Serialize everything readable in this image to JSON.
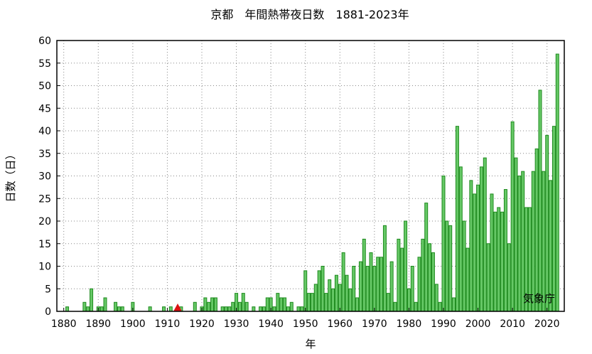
{
  "chart_data": {
    "type": "bar",
    "title": "京都　年間熱帯夜日数　1881-2023年",
    "xlabel": "年",
    "ylabel": "日数（日）",
    "credit": "気象庁",
    "x_range": [
      1878,
      2025
    ],
    "ylim": [
      0,
      60
    ],
    "xticks": [
      "1880",
      "1890",
      "1900",
      "1910",
      "1920",
      "1930",
      "1940",
      "1950",
      "1960",
      "1970",
      "1980",
      "1990",
      "2000",
      "2010",
      "2020"
    ],
    "yticks": [
      "0",
      "5",
      "10",
      "15",
      "20",
      "25",
      "30",
      "35",
      "40",
      "45",
      "50",
      "55",
      "60"
    ],
    "grid": true,
    "colors": {
      "bar_fill": "#66c866",
      "bar_stroke": "#1e8a1e",
      "marker": "#dd1111"
    },
    "missing_marker_year": 1913,
    "years": [
      1881,
      1882,
      1883,
      1884,
      1885,
      1886,
      1887,
      1888,
      1889,
      1890,
      1891,
      1892,
      1893,
      1894,
      1895,
      1896,
      1897,
      1898,
      1899,
      1900,
      1901,
      1902,
      1903,
      1904,
      1905,
      1906,
      1907,
      1908,
      1909,
      1910,
      1911,
      1912,
      1913,
      1914,
      1915,
      1916,
      1917,
      1918,
      1919,
      1920,
      1921,
      1922,
      1923,
      1924,
      1925,
      1926,
      1927,
      1928,
      1929,
      1930,
      1931,
      1932,
      1933,
      1934,
      1935,
      1936,
      1937,
      1938,
      1939,
      1940,
      1941,
      1942,
      1943,
      1944,
      1945,
      1946,
      1947,
      1948,
      1949,
      1950,
      1951,
      1952,
      1953,
      1954,
      1955,
      1956,
      1957,
      1958,
      1959,
      1960,
      1961,
      1962,
      1963,
      1964,
      1965,
      1966,
      1967,
      1968,
      1969,
      1970,
      1971,
      1972,
      1973,
      1974,
      1975,
      1976,
      1977,
      1978,
      1979,
      1980,
      1981,
      1982,
      1983,
      1984,
      1985,
      1986,
      1987,
      1988,
      1989,
      1990,
      1991,
      1992,
      1993,
      1994,
      1995,
      1996,
      1997,
      1998,
      1999,
      2000,
      2001,
      2002,
      2003,
      2004,
      2005,
      2006,
      2007,
      2008,
      2009,
      2010,
      2011,
      2012,
      2013,
      2014,
      2015,
      2016,
      2017,
      2018,
      2019,
      2020,
      2021,
      2022,
      2023
    ],
    "values": [
      1,
      0,
      0,
      0,
      0,
      2,
      1,
      5,
      0,
      1,
      1,
      3,
      0,
      0,
      2,
      1,
      1,
      0,
      0,
      2,
      0,
      0,
      0,
      0,
      1,
      0,
      0,
      0,
      1,
      0,
      1,
      0,
      0,
      1,
      0,
      0,
      0,
      2,
      0,
      1,
      3,
      2,
      3,
      3,
      0,
      1,
      1,
      1,
      2,
      4,
      2,
      4,
      2,
      0,
      1,
      0,
      1,
      1,
      3,
      3,
      1,
      4,
      3,
      3,
      1,
      2,
      0,
      1,
      1,
      9,
      4,
      4,
      6,
      9,
      10,
      4,
      7,
      5,
      8,
      6,
      13,
      8,
      5,
      10,
      3,
      11,
      16,
      10,
      13,
      10,
      12,
      12,
      19,
      4,
      11,
      2,
      16,
      14,
      20,
      5,
      10,
      2,
      12,
      16,
      24,
      15,
      13,
      6,
      2,
      30,
      20,
      19,
      3,
      41,
      32,
      20,
      14,
      29,
      26,
      28,
      32,
      34,
      15,
      26,
      22,
      23,
      22,
      27,
      15,
      42,
      34,
      30,
      31,
      23,
      23,
      31,
      36,
      49,
      31,
      39,
      29,
      41,
      57
    ]
  }
}
